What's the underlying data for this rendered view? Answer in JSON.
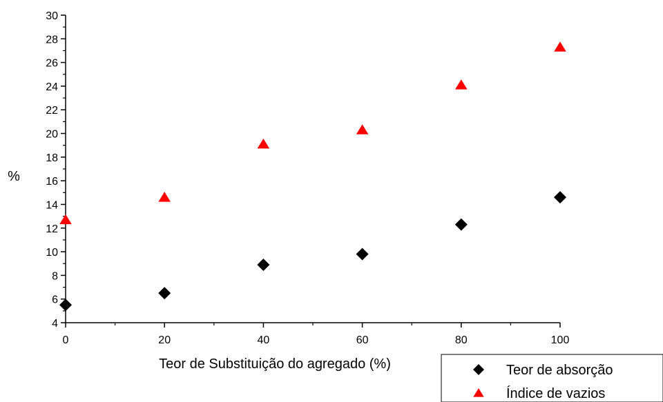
{
  "chart_data": {
    "type": "scatter",
    "xlabel": "Teor de Substituição do agregado (%)",
    "ylabel": "%",
    "xlim": [
      0,
      100
    ],
    "ylim": [
      4,
      30
    ],
    "xticks": [
      "0",
      "20",
      "40",
      "60",
      "80",
      "100"
    ],
    "yticks": [
      "4",
      "6",
      "8",
      "10",
      "12",
      "14",
      "16",
      "18",
      "20",
      "22",
      "24",
      "26",
      "28",
      "30"
    ],
    "grid": false,
    "legend_position": "bottom-right",
    "series": [
      {
        "name": "Teor de absorção",
        "marker": "diamond",
        "color": "#000000",
        "x": [
          0,
          20,
          40,
          60,
          80,
          100
        ],
        "y": [
          5.5,
          6.5,
          8.9,
          9.8,
          12.3,
          14.6
        ]
      },
      {
        "name": "Índice de vazios",
        "marker": "triangle",
        "color": "#ff0000",
        "x": [
          0,
          20,
          40,
          60,
          80,
          100
        ],
        "y": [
          12.7,
          14.6,
          19.1,
          20.3,
          24.1,
          27.3
        ]
      }
    ]
  }
}
